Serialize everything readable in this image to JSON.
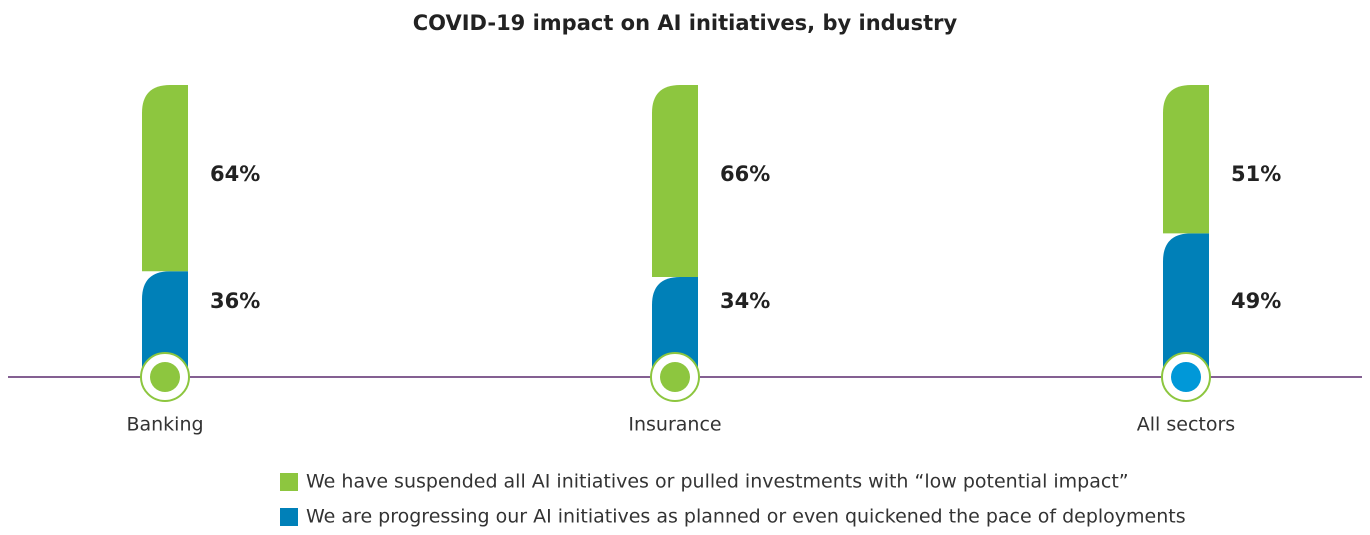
{
  "chart_data": {
    "type": "stacked_bar",
    "title": "COVID-19 impact on AI initiatives, by industry",
    "categories": [
      "Banking",
      "Insurance",
      "All sectors"
    ],
    "series": [
      {
        "name": "We have suspended all AI initiatives or pulled investments with “low potential impact”",
        "color": "#8dc63f",
        "values": [
          64,
          66,
          51
        ],
        "value_labels": [
          "64%",
          "66%",
          "51%"
        ]
      },
      {
        "name": "We are progressing our AI initiatives as planned or even quickened the pace of deployments",
        "color": "#0080b8",
        "values": [
          36,
          34,
          49
        ],
        "value_labels": [
          "36%",
          "34%",
          "49%"
        ]
      }
    ],
    "ylim": [
      0,
      100
    ],
    "axis_color": "#5b2c6f"
  }
}
